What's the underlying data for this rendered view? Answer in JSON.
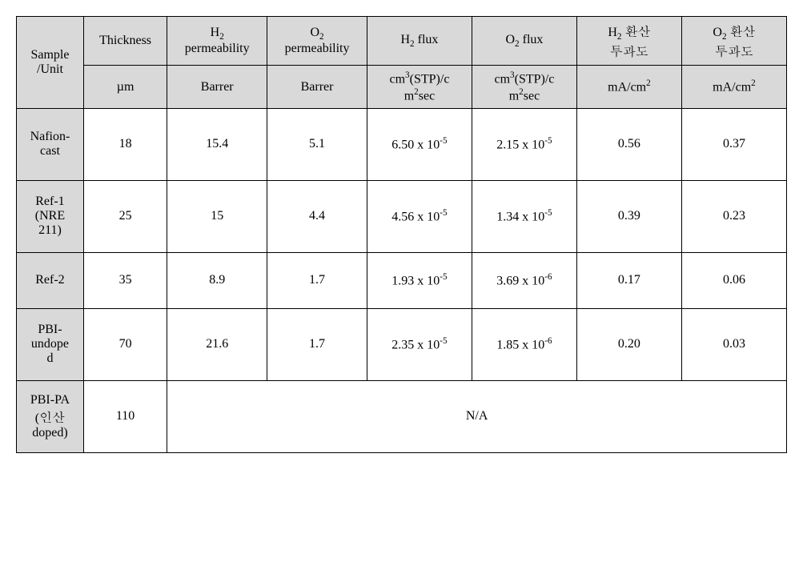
{
  "table": {
    "background_header": "#d9d9d9",
    "border_color": "#000000",
    "font_family": "Times New Roman / Batang serif",
    "font_size_pt": 12,
    "columns": [
      {
        "key": "sample",
        "name_html": "Sample<br>/Unit",
        "unit_html": ""
      },
      {
        "key": "thickness",
        "name_html": "Thickness",
        "unit_html": "µm"
      },
      {
        "key": "h2perm",
        "name_html": "H<sub>2</sub><br>permeability",
        "unit_html": "Barrer"
      },
      {
        "key": "o2perm",
        "name_html": "O<sub>2</sub><br>permeability",
        "unit_html": "Barrer"
      },
      {
        "key": "h2flux",
        "name_html": "H<sub>2</sub> flux",
        "unit_html": "cm<sup>3</sup>(STP)/c<br>m<sup>2</sup>sec"
      },
      {
        "key": "o2flux",
        "name_html": "O<sub>2</sub> flux",
        "unit_html": "cm<sup>3</sup>(STP)/c<br>m<sup>2</sup>sec"
      },
      {
        "key": "h2conv",
        "name_html": "H<sub>2</sub> 환산<br>투과도",
        "unit_html": "mA/cm<sup>2</sup>"
      },
      {
        "key": "o2conv",
        "name_html": "O<sub>2</sub> 환산<br>투과도",
        "unit_html": "mA/cm<sup>2</sup>"
      }
    ],
    "rows": [
      {
        "sample_html": "Nafion-<br>cast",
        "thickness": "18",
        "h2perm": "15.4",
        "o2perm": "5.1",
        "h2flux_html": "6.50 x 10<sup>-5</sup>",
        "o2flux_html": "2.15 x 10<sup>-5</sup>",
        "h2conv": "0.56",
        "o2conv": "0.37"
      },
      {
        "sample_html": "Ref-1<br>(NRE<br>211)",
        "thickness": "25",
        "h2perm": "15",
        "o2perm": "4.4",
        "h2flux_html": "4.56 x 10<sup>-5</sup>",
        "o2flux_html": "1.34 x 10<sup>-5</sup>",
        "h2conv": "0.39",
        "o2conv": "0.23"
      },
      {
        "sample_html": "Ref-2",
        "thickness": "35",
        "h2perm": "8.9",
        "o2perm": "1.7",
        "h2flux_html": "1.93 x 10<sup>-5</sup>",
        "o2flux_html": "3.69 x 10<sup>-6</sup>",
        "h2conv": "0.17",
        "o2conv": "0.06"
      },
      {
        "sample_html": "PBI-<br>undope<br>d",
        "thickness": "70",
        "h2perm": "21.6",
        "o2perm": "1.7",
        "h2flux_html": "2.35 x 10<sup>-5</sup>",
        "o2flux_html": "1.85 x 10<sup>-6</sup>",
        "h2conv": "0.20",
        "o2conv": "0.03"
      },
      {
        "sample_html": "PBI-PA<br>(인산<br>doped)",
        "thickness": "110",
        "na": "N/A"
      }
    ]
  }
}
